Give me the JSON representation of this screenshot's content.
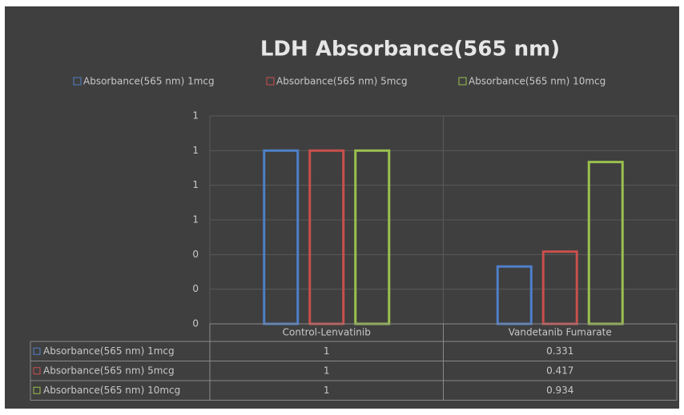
{
  "chart_data": {
    "type": "bar",
    "title": "LDH Absorbance(565 nm)",
    "categories": [
      "Control-Lenvatinib",
      "Vandetanib Fumarate"
    ],
    "series": [
      {
        "name": "Absorbance(565 nm)  1mcg",
        "color": "#4f7fc8",
        "values": [
          1,
          0.331
        ]
      },
      {
        "name": "Absorbance(565 nm)  5mcg",
        "color": "#c8504d",
        "values": [
          1,
          0.417
        ]
      },
      {
        "name": "Absorbance(565 nm)  10mcg",
        "color": "#9bc04f",
        "values": [
          1,
          0.934
        ]
      }
    ],
    "ylim": [
      0,
      1.2
    ],
    "yticks": [
      0,
      {
        "value": 0.2,
        "label": "0"
      },
      {
        "value": 0.4,
        "label": "0"
      },
      {
        "value": 0.6,
        "label": "1"
      },
      {
        "value": 0.8,
        "label": "1"
      },
      1,
      {
        "value": 1.2,
        "label": "1"
      }
    ],
    "grid": true,
    "legend": "top",
    "data_table": true
  }
}
